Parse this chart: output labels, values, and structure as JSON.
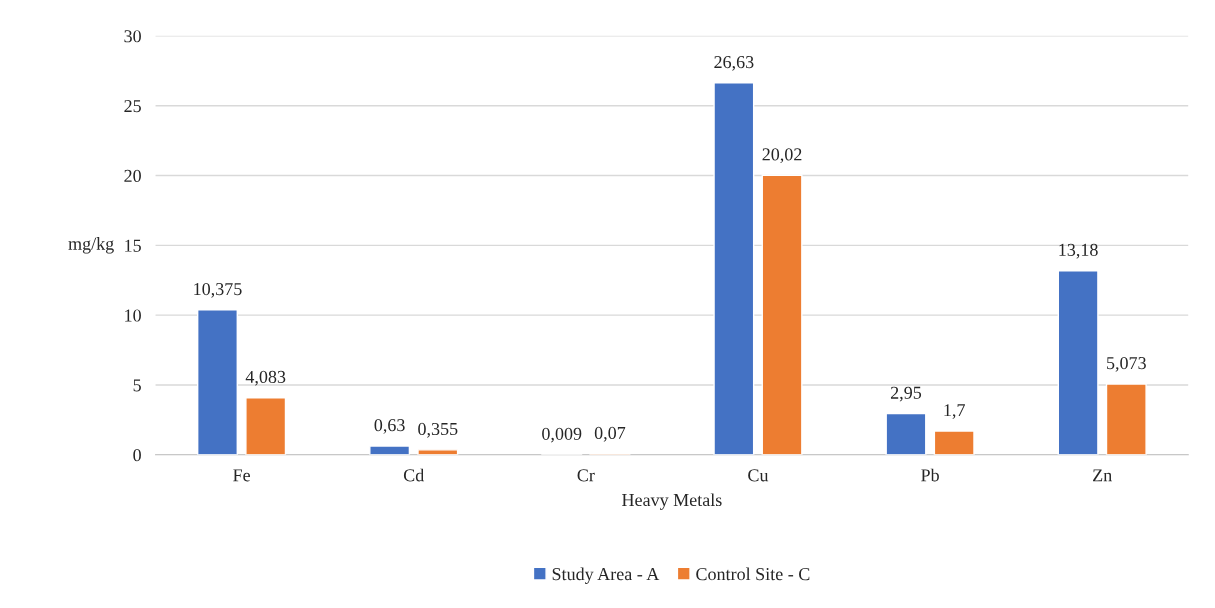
{
  "chart_data": {
    "type": "bar",
    "xlabel": "Heavy Metals",
    "ylabel": "mg/kg",
    "categories": [
      "Fe",
      "Cd",
      "Cr",
      "Cu",
      "Pb",
      "Zn"
    ],
    "series": [
      {
        "name": "Study Area - A",
        "color": "#4472c4",
        "values": [
          10.375,
          0.63,
          0.009,
          26.63,
          2.95,
          13.18
        ],
        "value_labels": [
          "10,375",
          "0,63",
          "0,009",
          "26,63",
          "2,95",
          "13,18"
        ]
      },
      {
        "name": "Control Site - C",
        "color": "#ed7d31",
        "values": [
          4.083,
          0.355,
          0.07,
          20.02,
          1.7,
          5.073
        ],
        "value_labels": [
          "4,083",
          "0,355",
          "0,07",
          "20,02",
          "1,7",
          "5,073"
        ]
      }
    ],
    "ylim": [
      0,
      30
    ],
    "yticks": [
      0,
      5,
      10,
      15,
      20,
      25,
      30
    ],
    "grid": "y",
    "legend": "bottom"
  }
}
